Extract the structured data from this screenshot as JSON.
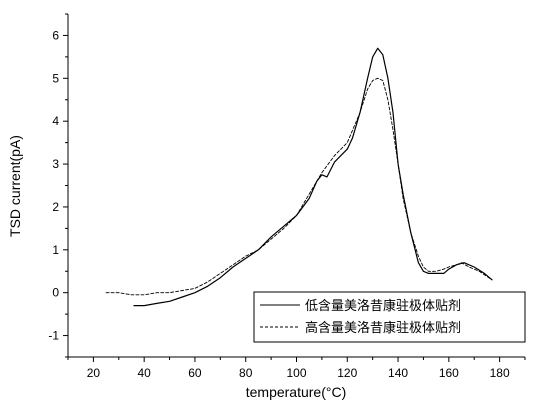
{
  "chart_data": {
    "type": "line",
    "xlabel": "temperature(°C)",
    "ylabel": "TSD current(pA)",
    "xlim": [
      10,
      190
    ],
    "ylim": [
      -1.5,
      6.5
    ],
    "xticks": [
      20,
      40,
      60,
      80,
      100,
      120,
      140,
      160,
      180
    ],
    "yticks": [
      -1,
      0,
      1,
      2,
      3,
      4,
      5,
      6
    ],
    "grid": false,
    "legend_position": "bottom-right",
    "series": [
      {
        "name": "低含量美洛昔康驻极体贴剂",
        "style": "solid",
        "color": "#000000",
        "x": [
          36,
          40,
          45,
          50,
          55,
          60,
          65,
          70,
          75,
          80,
          85,
          90,
          95,
          100,
          105,
          108,
          110,
          112,
          115,
          120,
          122,
          125,
          128,
          130,
          132,
          134,
          136,
          138,
          140,
          142,
          145,
          148,
          150,
          152,
          155,
          158,
          160,
          163,
          166,
          170,
          174,
          177
        ],
        "y": [
          -0.3,
          -0.3,
          -0.25,
          -0.2,
          -0.1,
          0.0,
          0.15,
          0.35,
          0.6,
          0.8,
          1.0,
          1.3,
          1.55,
          1.8,
          2.2,
          2.6,
          2.75,
          2.7,
          3.05,
          3.35,
          3.6,
          4.2,
          5.0,
          5.5,
          5.7,
          5.55,
          5.0,
          4.2,
          3.0,
          2.3,
          1.4,
          0.7,
          0.5,
          0.45,
          0.45,
          0.45,
          0.55,
          0.65,
          0.7,
          0.6,
          0.45,
          0.3
        ]
      },
      {
        "name": "高含量美洛昔康驻极体贴剂",
        "style": "dashed",
        "color": "#000000",
        "x": [
          25,
          30,
          35,
          40,
          45,
          50,
          55,
          60,
          65,
          70,
          75,
          80,
          85,
          90,
          95,
          100,
          105,
          110,
          115,
          120,
          125,
          128,
          130,
          132,
          134,
          136,
          138,
          140,
          142,
          145,
          148,
          150,
          152,
          155,
          158,
          160,
          163,
          165,
          168,
          172,
          177
        ],
        "y": [
          0.0,
          0.0,
          -0.05,
          -0.05,
          0.0,
          0.0,
          0.05,
          0.1,
          0.25,
          0.45,
          0.65,
          0.85,
          1.0,
          1.25,
          1.5,
          1.8,
          2.3,
          2.8,
          3.2,
          3.5,
          4.2,
          4.75,
          4.95,
          5.0,
          4.95,
          4.5,
          3.8,
          3.0,
          2.2,
          1.4,
          0.85,
          0.6,
          0.5,
          0.5,
          0.55,
          0.6,
          0.65,
          0.7,
          0.6,
          0.5,
          0.3
        ]
      }
    ]
  }
}
